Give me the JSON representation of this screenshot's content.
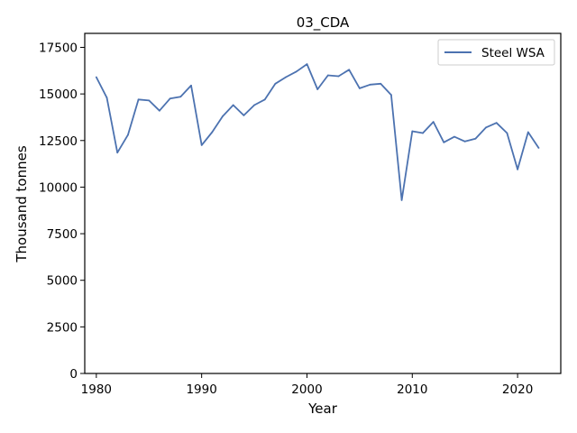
{
  "chart_data": {
    "type": "line",
    "title": "03_CDA",
    "xlabel": "Year",
    "ylabel": "Thousand tonnes",
    "xlim": [
      1978.9,
      2024.1
    ],
    "ylim": [
      0,
      18250
    ],
    "xticks": [
      1980,
      1990,
      2000,
      2010,
      2020
    ],
    "yticks": [
      0,
      2500,
      5000,
      7500,
      10000,
      12500,
      15000,
      17500
    ],
    "grid": false,
    "legend_position": "top-right",
    "series": [
      {
        "name": "Steel WSA",
        "color": "#4c72b0",
        "x": [
          1980,
          1981,
          1982,
          1983,
          1984,
          1985,
          1986,
          1987,
          1988,
          1989,
          1990,
          1991,
          1992,
          1993,
          1994,
          1995,
          1996,
          1997,
          1998,
          1999,
          2000,
          2001,
          2002,
          2003,
          2004,
          2005,
          2006,
          2007,
          2008,
          2009,
          2010,
          2011,
          2012,
          2013,
          2014,
          2015,
          2016,
          2017,
          2018,
          2019,
          2020,
          2021,
          2022
        ],
        "y": [
          15900,
          14800,
          11850,
          12800,
          14700,
          14650,
          14100,
          14750,
          14850,
          15450,
          12250,
          12950,
          13800,
          14400,
          13850,
          14400,
          14700,
          15550,
          15900,
          16200,
          16600,
          15250,
          16000,
          15950,
          16300,
          15300,
          15500,
          15550,
          14950,
          9300,
          13000,
          12900,
          13500,
          12400,
          12700,
          12450,
          12600,
          13200,
          13450,
          12900,
          10950,
          12950,
          12100
        ]
      }
    ]
  }
}
